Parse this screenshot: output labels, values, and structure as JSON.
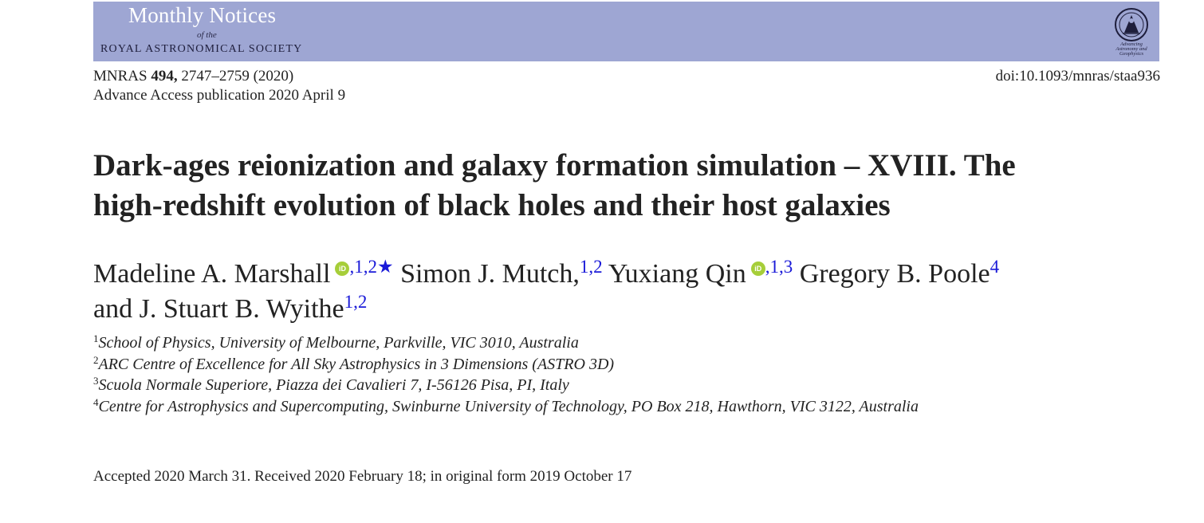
{
  "journal": {
    "name": "Monthly Notices",
    "of_the": "of the",
    "society": "ROYAL ASTRONOMICAL SOCIETY",
    "seal_caption": [
      "Advancing",
      "Astronomy and",
      "Geophysics"
    ],
    "banner_color": "#9ea6d3"
  },
  "citation": {
    "journal_abbrev": "MNRAS",
    "volume": "494,",
    "pages_year": "2747–2759 (2020)",
    "advance_access": "Advance Access publication 2020 April 9",
    "doi": "doi:10.1093/mnras/staa936"
  },
  "title": {
    "line1": "Dark-ages reionization and galaxy formation simulation – XVIII. The",
    "line2": "high-redshift evolution of black holes and their host galaxies"
  },
  "authors": [
    {
      "name": "Madeline A. Marshall",
      "orcid": "iD",
      "affil": ",1,2★"
    },
    {
      "name": "Simon J. Mutch,",
      "affil": "1,2"
    },
    {
      "name": "Yuxiang Qin",
      "orcid": "iD",
      "affil": ",1,3"
    },
    {
      "name": "Gregory B. Poole",
      "affil": "4"
    },
    {
      "name": "and J. Stuart B. Wyithe",
      "affil": "1,2"
    }
  ],
  "affiliations": [
    {
      "num": "1",
      "text": "School of Physics, University of Melbourne, Parkville, VIC 3010, Australia"
    },
    {
      "num": "2",
      "text": "ARC Centre of Excellence for All Sky Astrophysics in 3 Dimensions (ASTRO 3D)"
    },
    {
      "num": "3",
      "text": "Scuola Normale Superiore, Piazza dei Cavalieri 7, I-56126 Pisa, PI, Italy"
    },
    {
      "num": "4",
      "text": "Centre for Astrophysics and Supercomputing, Swinburne University of Technology, PO Box 218, Hawthorn, VIC 3122, Australia"
    }
  ],
  "received": "Accepted 2020 March 31. Received 2020 February 18; in original form 2019 October 17",
  "colors": {
    "orcid": "#a6ce39",
    "affil_link": "#1a1ad8"
  }
}
